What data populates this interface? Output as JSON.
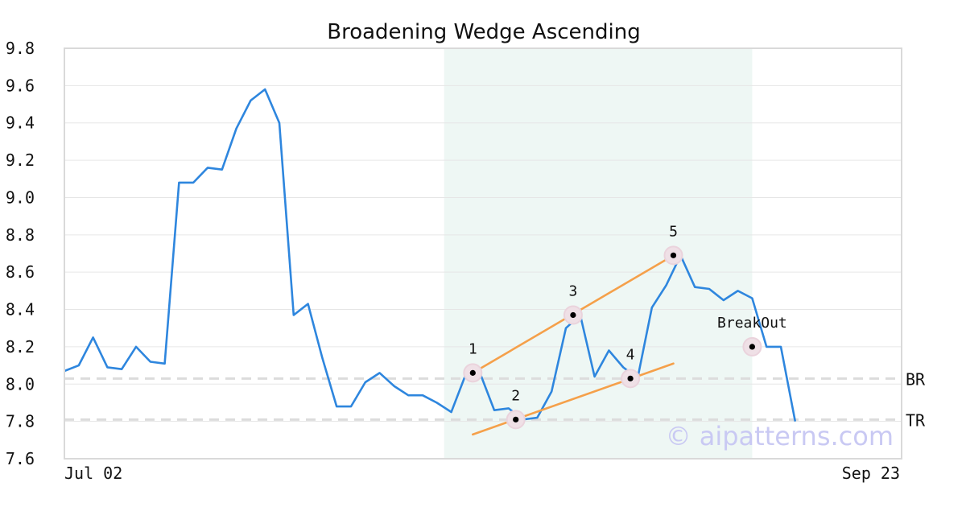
{
  "chart_data": {
    "type": "line",
    "title": "Broadening Wedge Ascending",
    "watermark": "© aipatterns.com",
    "ylim": [
      7.6,
      9.8
    ],
    "y_ticks": [
      "7.6",
      "7.8",
      "8.0",
      "8.2",
      "8.4",
      "8.6",
      "8.8",
      "9.0",
      "9.2",
      "9.4",
      "9.6",
      "9.8"
    ],
    "x_ticks": [
      {
        "index": 0,
        "label": "Jul 02"
      },
      {
        "index": 58,
        "label": "Sep 23"
      }
    ],
    "grid": true,
    "series": [
      {
        "color": "#2e86de",
        "values": [
          8.07,
          8.1,
          8.25,
          8.09,
          8.08,
          8.2,
          8.12,
          8.11,
          9.08,
          9.08,
          9.16,
          9.15,
          9.37,
          9.52,
          9.58,
          9.4,
          8.37,
          8.43,
          8.14,
          7.88,
          7.88,
          8.01,
          8.06,
          7.99,
          7.94,
          7.94,
          7.9,
          7.85,
          8.05,
          8.06,
          7.86,
          7.87,
          7.81,
          7.82,
          7.96,
          8.3,
          8.37,
          8.04,
          8.18,
          8.09,
          8.03,
          8.41,
          8.53,
          8.69,
          8.52,
          8.51,
          8.45,
          8.5,
          8.46,
          8.2,
          8.2,
          7.8
        ]
      }
    ],
    "highlight_range": {
      "from_index": 26.5,
      "to_index": 48.0,
      "color": "#eef7f4"
    },
    "pattern_points": [
      {
        "label": "1",
        "index": 28.5,
        "value": 8.06
      },
      {
        "label": "2",
        "index": 31.5,
        "value": 7.81
      },
      {
        "label": "3",
        "index": 35.5,
        "value": 8.37
      },
      {
        "label": "4",
        "index": 39.5,
        "value": 8.03
      },
      {
        "label": "5",
        "index": 42.5,
        "value": 8.69
      },
      {
        "label": "BreakOut",
        "index": 48.0,
        "value": 8.2
      }
    ],
    "trend_lines": [
      {
        "color": "#f5a04a",
        "from": {
          "index": 28.5,
          "value": 8.06
        },
        "to": {
          "index": 42.5,
          "value": 8.69
        }
      },
      {
        "color": "#f5a04a",
        "from": {
          "index": 28.5,
          "value": 7.73
        },
        "to": {
          "index": 42.5,
          "value": 8.11
        }
      }
    ],
    "reference_lines": [
      {
        "label": "BR",
        "value": 8.03
      },
      {
        "label": "TR",
        "value": 7.81
      }
    ]
  }
}
